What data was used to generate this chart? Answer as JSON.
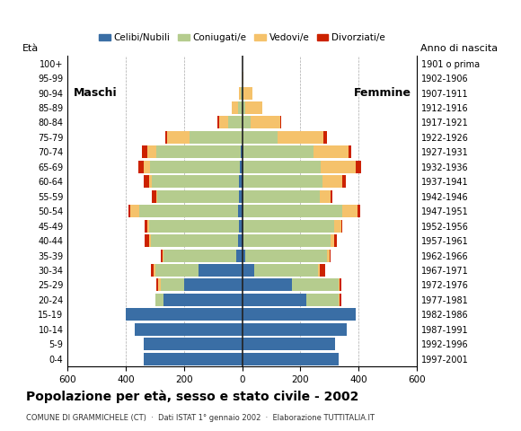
{
  "age_groups": [
    "0-4",
    "5-9",
    "10-14",
    "15-19",
    "20-24",
    "25-29",
    "30-34",
    "35-39",
    "40-44",
    "45-49",
    "50-54",
    "55-59",
    "60-64",
    "65-69",
    "70-74",
    "75-79",
    "80-84",
    "85-89",
    "90-94",
    "95-99",
    "100+"
  ],
  "birth_years": [
    "1997-2001",
    "1992-1996",
    "1987-1991",
    "1982-1986",
    "1977-1981",
    "1972-1976",
    "1967-1971",
    "1962-1966",
    "1957-1961",
    "1952-1956",
    "1947-1951",
    "1942-1946",
    "1937-1941",
    "1932-1936",
    "1927-1931",
    "1922-1926",
    "1917-1921",
    "1912-1916",
    "1907-1911",
    "1902-1906",
    "1901 o prima"
  ],
  "male": {
    "celibi": [
      340,
      340,
      370,
      400,
      270,
      200,
      150,
      20,
      15,
      10,
      15,
      12,
      10,
      8,
      5,
      0,
      0,
      0,
      0,
      0,
      0
    ],
    "coniugati": [
      0,
      0,
      0,
      0,
      30,
      80,
      150,
      250,
      300,
      310,
      340,
      280,
      300,
      310,
      290,
      180,
      50,
      15,
      5,
      0,
      0
    ],
    "vedovi": [
      0,
      0,
      0,
      0,
      0,
      10,
      5,
      5,
      5,
      5,
      30,
      5,
      10,
      20,
      30,
      80,
      30,
      20,
      5,
      0,
      0
    ],
    "divorziati": [
      0,
      0,
      0,
      0,
      0,
      5,
      10,
      5,
      15,
      10,
      5,
      15,
      20,
      20,
      20,
      5,
      5,
      0,
      0,
      0,
      0
    ]
  },
  "female": {
    "nubili": [
      330,
      320,
      360,
      390,
      220,
      170,
      40,
      10,
      5,
      5,
      5,
      5,
      5,
      5,
      5,
      0,
      0,
      0,
      0,
      0,
      0
    ],
    "coniugate": [
      0,
      0,
      0,
      0,
      110,
      160,
      220,
      280,
      300,
      310,
      340,
      260,
      270,
      265,
      240,
      120,
      30,
      10,
      5,
      0,
      0
    ],
    "vedove": [
      0,
      0,
      0,
      0,
      5,
      5,
      5,
      10,
      10,
      25,
      50,
      40,
      70,
      120,
      120,
      160,
      100,
      60,
      30,
      5,
      0
    ],
    "divorziate": [
      0,
      0,
      0,
      0,
      5,
      5,
      20,
      5,
      10,
      5,
      10,
      5,
      10,
      20,
      10,
      10,
      5,
      0,
      0,
      0,
      0
    ]
  },
  "colors": {
    "celibi": "#3a6ea5",
    "coniugati": "#b5cc8e",
    "vedovi": "#f5c26b",
    "divorziati": "#cc2200"
  },
  "xlim": 600,
  "title": "Popolazione per età, sesso e stato civile - 2002",
  "subtitle": "COMUNE DI GRAMMICHELE (CT)  ·  Dati ISTAT 1° gennaio 2002  ·  Elaborazione TUTTITALIA.IT",
  "bg_color": "#ffffff",
  "grid_color": "#aaaaaa",
  "legend_labels": [
    "Celibi/Nubili",
    "Coniugati/e",
    "Vedovi/e",
    "Divorziati/e"
  ]
}
